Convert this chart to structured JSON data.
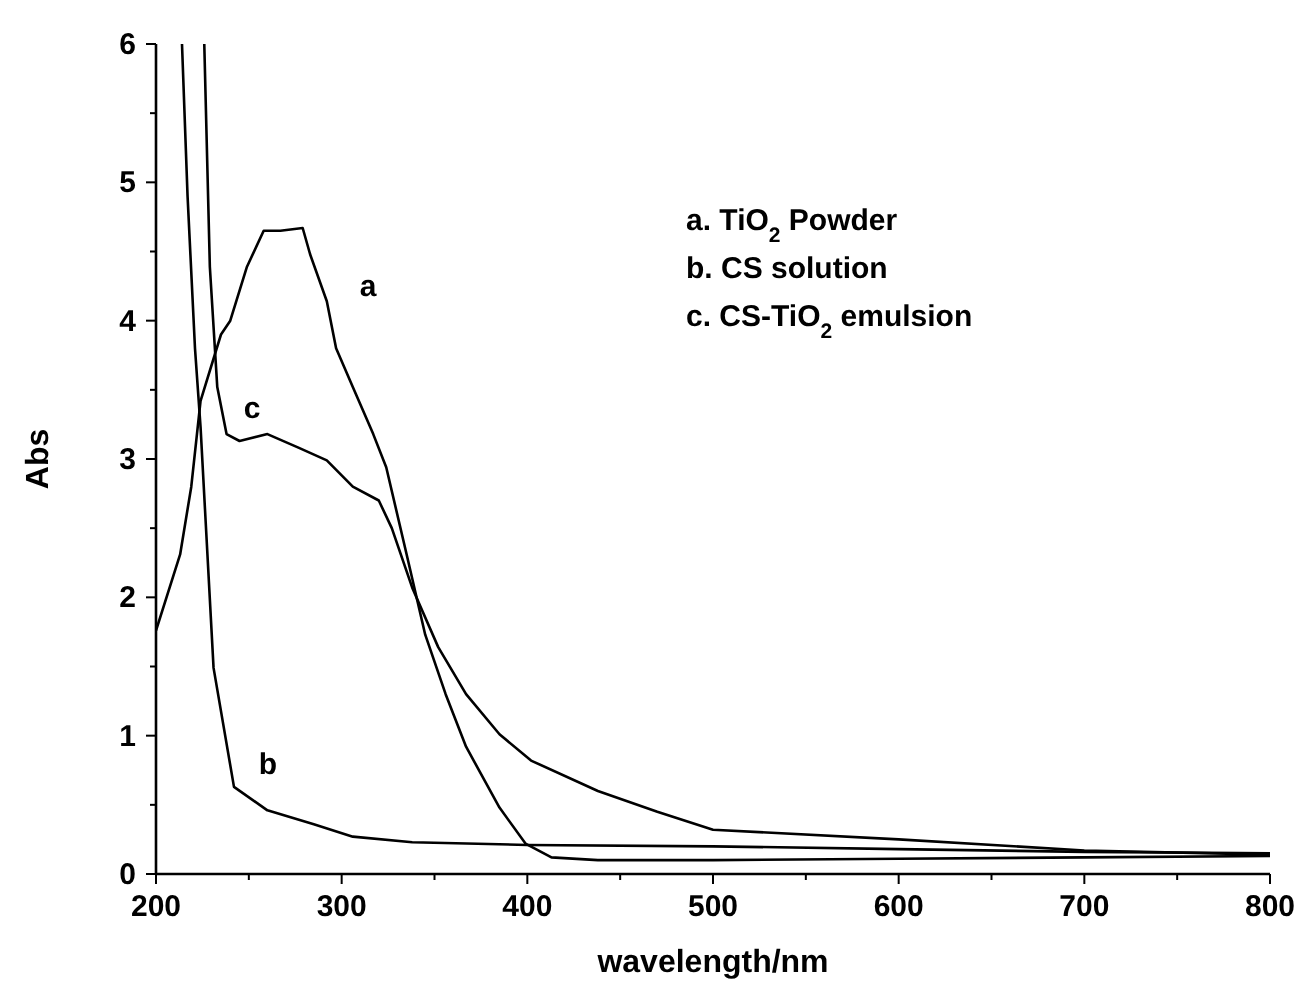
{
  "chart_data": {
    "type": "line",
    "xlabel": "wavelength/nm",
    "ylabel": "Abs",
    "xlim": [
      200,
      800
    ],
    "ylim": [
      0,
      6
    ],
    "xticks": [
      200,
      {
        "value": 250,
        "label": null
      },
      300,
      {
        "value": 350,
        "label": null
      },
      400,
      {
        "value": 450,
        "label": null
      },
      500,
      {
        "value": 550,
        "label": null
      },
      600,
      {
        "value": 650,
        "label": null
      },
      700,
      {
        "value": 750,
        "label": null
      },
      800
    ],
    "yticks": [
      0,
      {
        "value": 0.5,
        "label": null
      },
      1,
      {
        "value": 1.5,
        "label": null
      },
      2,
      {
        "value": 2.5,
        "label": null
      },
      3,
      {
        "value": 3.5,
        "label": null
      },
      4,
      {
        "value": 4.5,
        "label": null
      },
      5,
      {
        "value": 5.5,
        "label": null
      },
      6
    ],
    "grid": false,
    "marker": "none",
    "line_style": "solid",
    "series": [
      {
        "name": "a",
        "color": "#000000",
        "x": [
          200,
          213,
          219,
          224,
          235,
          240,
          249,
          258,
          267,
          279,
          283,
          292,
          297,
          306,
          317,
          324,
          335,
          345,
          356,
          367,
          385,
          399,
          413,
          438,
          500,
          600,
          700,
          800
        ],
        "values": [
          1.76,
          2.31,
          2.8,
          3.42,
          3.9,
          4.0,
          4.39,
          4.65,
          4.65,
          4.67,
          4.48,
          4.14,
          3.8,
          3.52,
          3.18,
          2.94,
          2.31,
          1.73,
          1.3,
          0.92,
          0.48,
          0.22,
          0.12,
          0.1,
          0.1,
          0.11,
          0.12,
          0.13
        ]
      },
      {
        "name": "b",
        "color": "#000000",
        "x": [
          214,
          217,
          221,
          224,
          231,
          242,
          260,
          285,
          306,
          338,
          400,
          500,
          600,
          700,
          800
        ],
        "values": [
          6,
          4.9,
          3.8,
          3.23,
          1.49,
          0.63,
          0.46,
          0.36,
          0.27,
          0.23,
          0.21,
          0.2,
          0.18,
          0.16,
          0.15
        ]
      },
      {
        "name": "c",
        "color": "#000000",
        "x": [
          226,
          229,
          233,
          238,
          245,
          260,
          277,
          292,
          306,
          320,
          327,
          338,
          352,
          367,
          385,
          402,
          438,
          470,
          500,
          600,
          700,
          800
        ],
        "values": [
          6,
          4.39,
          3.52,
          3.18,
          3.13,
          3.18,
          3.08,
          2.99,
          2.8,
          2.7,
          2.5,
          2.07,
          1.64,
          1.3,
          1.01,
          0.82,
          0.6,
          0.45,
          0.32,
          0.25,
          0.17,
          0.14
        ]
      }
    ],
    "annotations": [
      "a. TiO$_{2}$ Powder",
      "b. CS solution",
      "c. CS-TiO$_{2}$ emulsion"
    ]
  }
}
